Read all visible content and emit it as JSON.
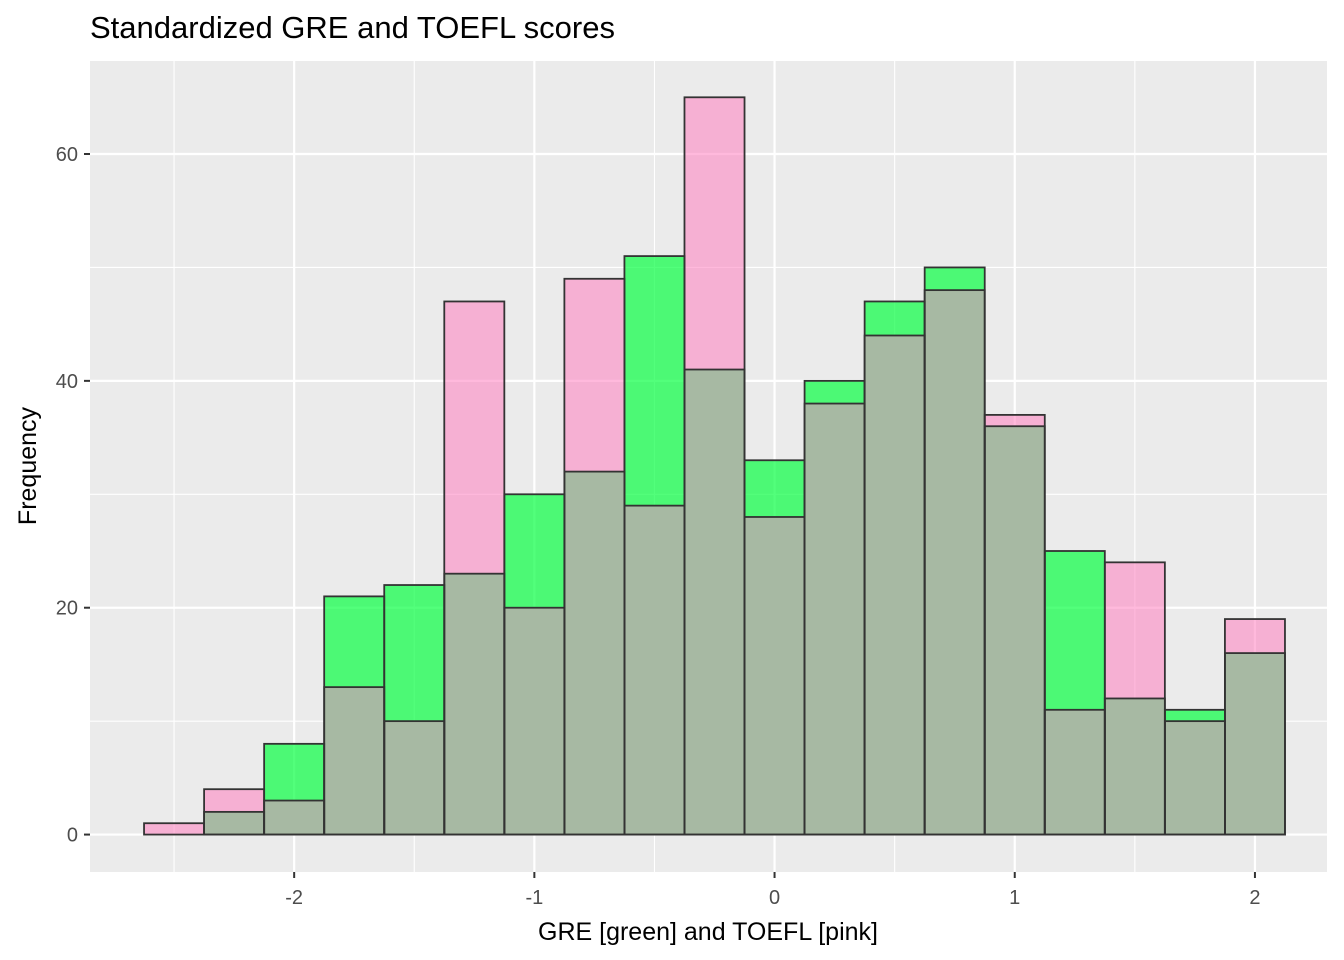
{
  "chart_data": {
    "type": "bar",
    "title": "Standardized GRE and TOEFL scores",
    "xlabel": "GRE [green] and TOEFL [pink]",
    "ylabel": "Frequency",
    "xlim": [
      -2.85,
      2.3
    ],
    "ylim": [
      -3.3,
      68.2
    ],
    "x_ticks": [
      "-2",
      "-1",
      "0",
      "1",
      "2"
    ],
    "y_ticks": [
      "0",
      "20",
      "40",
      "60"
    ],
    "bin_width": 0.25,
    "bin_centers": [
      -2.5,
      -2.25,
      -2.0,
      -1.75,
      -1.5,
      -1.25,
      -1.0,
      -0.75,
      -0.5,
      -0.25,
      0.0,
      0.25,
      0.5,
      0.75,
      1.0,
      1.25,
      1.5,
      1.75,
      2.0
    ],
    "series": [
      {
        "name": "GRE",
        "color": "#00ff3c",
        "values": [
          0,
          2,
          8,
          21,
          22,
          23,
          30,
          32,
          51,
          41,
          33,
          40,
          47,
          50,
          36,
          25,
          12,
          11,
          16
        ]
      },
      {
        "name": "TOEFL",
        "color": "#ff80c0",
        "values": [
          1,
          4,
          3,
          13,
          10,
          47,
          20,
          49,
          29,
          65,
          28,
          38,
          44,
          48,
          37,
          11,
          24,
          10,
          19
        ]
      }
    ],
    "overlap_color": "#a7b9a3",
    "panel_background": "#ebebeb",
    "grid": true,
    "legend": "none"
  }
}
